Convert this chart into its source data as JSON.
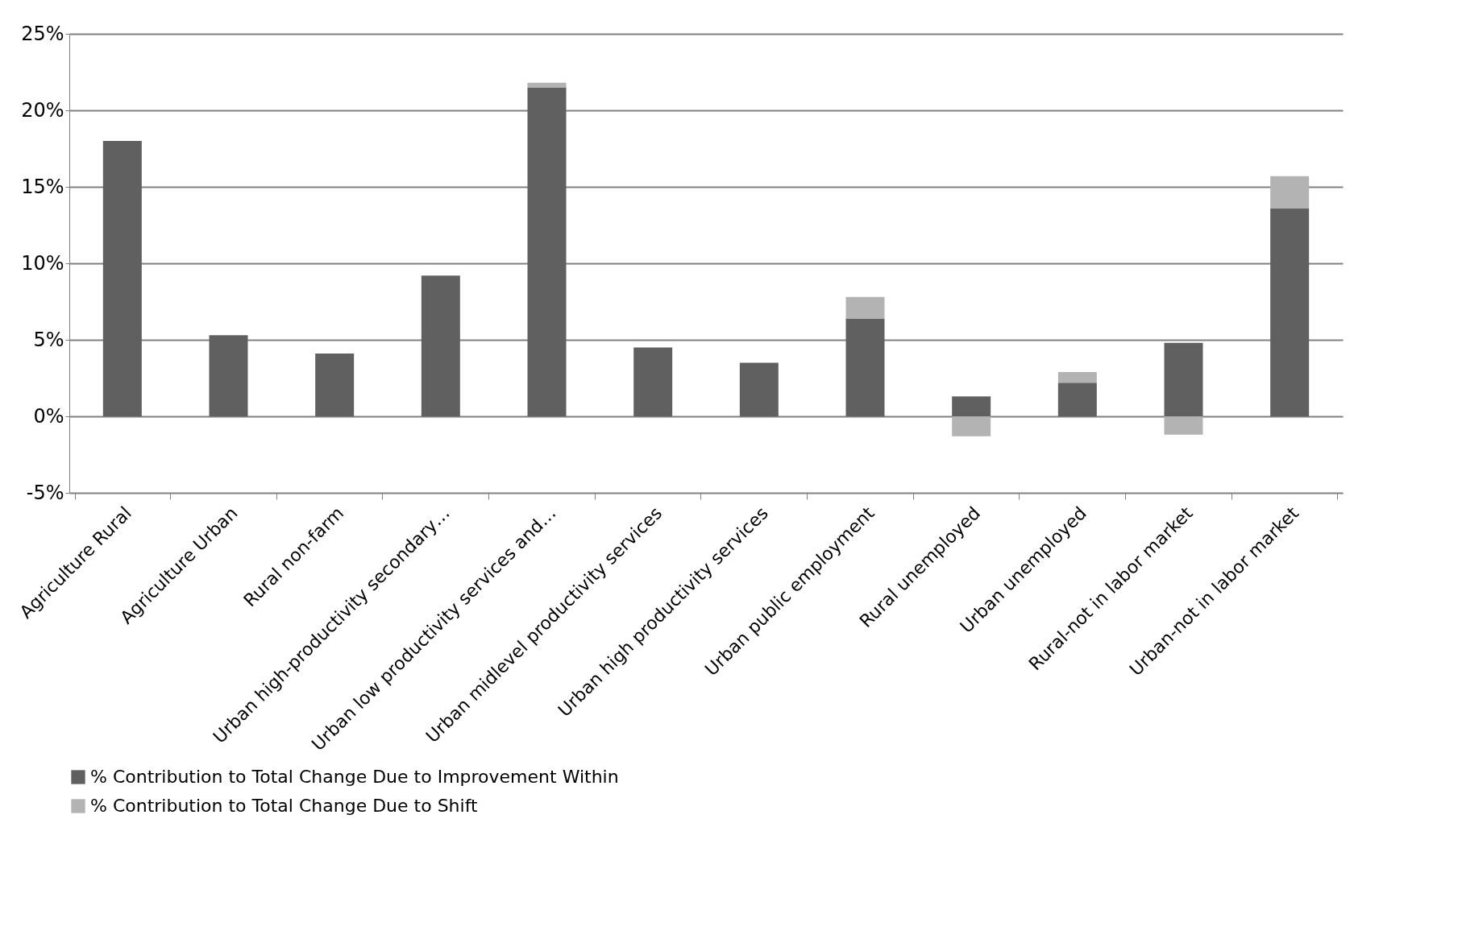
{
  "chart_data": {
    "type": "bar",
    "stacked": true,
    "categories": [
      "Agriculture Rural",
      "Agriculture Urban",
      "Rural non-farm",
      "Urban high-productivity secondary…",
      "Urban low productivity services and…",
      "Urban midlevel productivity services",
      "Urban high productivity services",
      "Urban public employment",
      "Rural unemployed",
      "Urban unemployed",
      "Rural-not in labor market",
      "Urban-not in labor market"
    ],
    "series": [
      {
        "name": "% Contribution to Total Change Due to Improvement Within",
        "color": "#606060",
        "values": [
          18.0,
          5.3,
          4.1,
          9.2,
          21.5,
          4.5,
          3.5,
          6.4,
          1.3,
          2.2,
          4.8,
          13.6
        ]
      },
      {
        "name": "% Contribution to Total Change Due to Shift",
        "color": "#b3b3b3",
        "values": [
          0,
          0,
          0,
          0,
          0.3,
          0,
          0,
          1.4,
          -1.3,
          0.7,
          -1.2,
          2.1
        ]
      }
    ],
    "ylim": [
      -5,
      25
    ],
    "yticks": [
      {
        "value": -5,
        "label": "-5%"
      },
      {
        "value": 0,
        "label": "0%"
      },
      {
        "value": 5,
        "label": "5%"
      },
      {
        "value": 10,
        "label": "10%"
      },
      {
        "value": 15,
        "label": "15%"
      },
      {
        "value": 20,
        "label": "20%"
      },
      {
        "value": 25,
        "label": "25%"
      }
    ],
    "grid": "y",
    "legend": "bottom"
  }
}
